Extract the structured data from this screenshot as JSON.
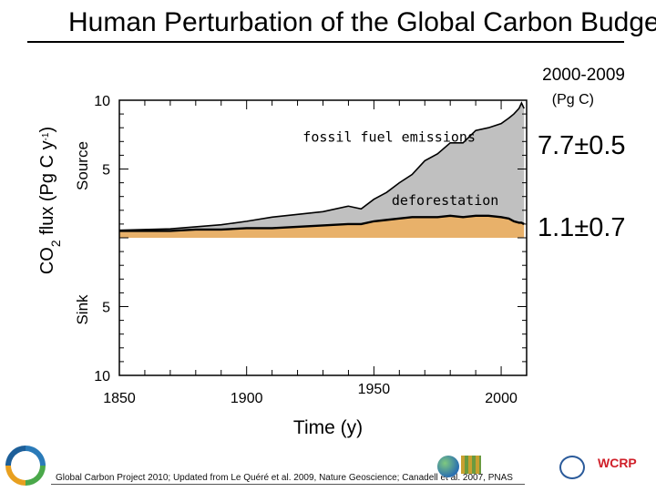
{
  "slide": {
    "title": "Human Perturbation of the Global Carbon Budget",
    "footer": "Global Carbon Project 2010; Updated from Le Quéré et al. 2009, Nature Geoscience; Canadell et al. 2007, PNAS"
  },
  "labels": {
    "period": "2000-2009",
    "unit": "(Pg C)",
    "fossil_stat": "7.7±0.5",
    "deforestation_stat": "1.1±0.7",
    "source": "Source",
    "sink": "Sink",
    "y_axis_main": "CO",
    "y_axis_sub": "2",
    "y_axis_rest": " flux (Pg C y",
    "y_axis_exp": "-1",
    "y_axis_close": ")"
  },
  "colors": {
    "fossil_fill": "#c0c0c0",
    "deforestation_fill": "#e8b16a",
    "line": "#000000",
    "frame": "#000000"
  },
  "chart_data": {
    "type": "area",
    "title": "",
    "xlabel": "Time (y)",
    "ylabel": "CO2 flux (Pg C y-1)",
    "xlim": [
      1850,
      2010
    ],
    "ylim": [
      -10,
      10
    ],
    "x_ticks": [
      1850,
      1900,
      1950,
      2000
    ],
    "y_ticks": [
      {
        "value": 10,
        "label": "10"
      },
      {
        "value": 5,
        "label": "5"
      },
      {
        "value": -5,
        "label": "5"
      },
      {
        "value": -10,
        "label": "10"
      }
    ],
    "x": [
      1850,
      1860,
      1870,
      1880,
      1890,
      1900,
      1910,
      1920,
      1930,
      1940,
      1945,
      1950,
      1955,
      1960,
      1965,
      1970,
      1975,
      1980,
      1985,
      1990,
      1995,
      2000,
      2003,
      2005,
      2007,
      2008,
      2009
    ],
    "series": [
      {
        "name": "deforestation",
        "stack": "base",
        "values": [
          0.5,
          0.5,
          0.5,
          0.6,
          0.6,
          0.7,
          0.7,
          0.8,
          0.9,
          1.0,
          1.0,
          1.2,
          1.3,
          1.4,
          1.5,
          1.5,
          1.5,
          1.6,
          1.5,
          1.6,
          1.6,
          1.5,
          1.4,
          1.2,
          1.1,
          1.1,
          1.0
        ]
      },
      {
        "name": "fossil fuel emissions",
        "stack": "top",
        "values": [
          0.05,
          0.1,
          0.15,
          0.2,
          0.35,
          0.5,
          0.8,
          0.9,
          1.0,
          1.3,
          1.1,
          1.6,
          2.0,
          2.6,
          3.1,
          4.1,
          4.6,
          5.3,
          5.4,
          6.2,
          6.4,
          6.8,
          7.3,
          7.8,
          8.3,
          8.7,
          8.4
        ]
      }
    ],
    "annotations": [
      {
        "text": "fossil fuel emissions",
        "x": 1956,
        "y": 7.0
      },
      {
        "text": "deforestation",
        "x": 1978,
        "y": 2.4
      }
    ]
  }
}
